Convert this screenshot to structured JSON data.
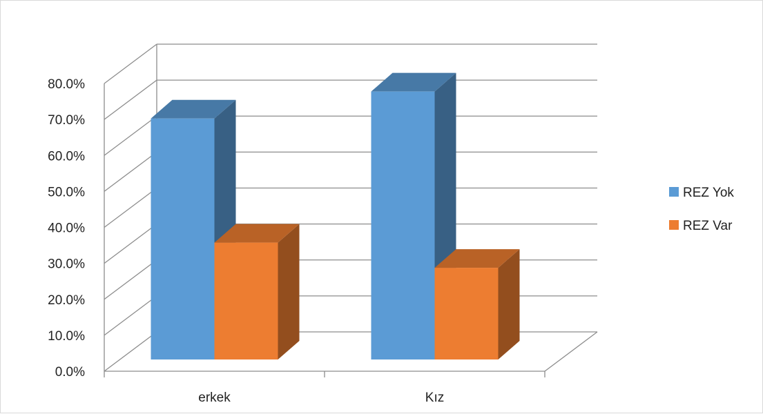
{
  "chart_data": {
    "type": "bar",
    "subtype": "3d-clustered-column",
    "title": "",
    "xlabel": "",
    "ylabel": "",
    "categories": [
      "erkek",
      "Kız"
    ],
    "series": [
      {
        "name": "REZ Yok",
        "values": [
          67.0,
          74.5
        ],
        "color": "#5b9bd5"
      },
      {
        "name": "REZ Var",
        "values": [
          32.5,
          25.5
        ],
        "color": "#ed7d31"
      }
    ],
    "ylim": [
      0,
      80
    ],
    "y_ticks": [
      "0.0%",
      "10.0%",
      "20.0%",
      "30.0%",
      "40.0%",
      "50.0%",
      "60.0%",
      "70.0%",
      "80.0%"
    ],
    "grid": true,
    "legend_position": "right"
  }
}
